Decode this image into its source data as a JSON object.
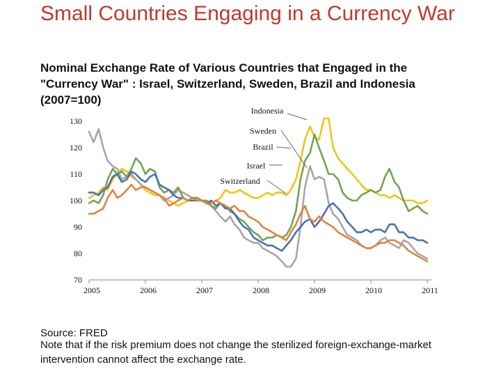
{
  "slide": {
    "title": "Small Countries Engaging in a Currency War",
    "source": "Source: FRED",
    "note": "Note that if the risk premium does not change the sterilized foreign-exchange-market intervention cannot affect the exchange rate."
  },
  "colors": {
    "title": "#c0392b",
    "Israel": "#4a72b0",
    "Switzerland": "#e0833d",
    "Sweden": "#a6a6a6",
    "Brazil": "#72a450",
    "Indonesia": "#f2c31a"
  },
  "chart_data": {
    "type": "line",
    "title": "Nominal Exchange Rate of Various Countries that Engaged in the \"Currency War\" : Israel, Switzerland, Sweden, Brazil and Indonesia (2007=100)",
    "xlabel": "",
    "ylabel": "",
    "xlim": [
      2005.0,
      2011.0
    ],
    "ylim": [
      70,
      130
    ],
    "yticks": [
      70,
      80,
      90,
      100,
      110,
      120,
      130
    ],
    "xticks": [
      2005,
      2006,
      2007,
      2008,
      2009,
      2010,
      2011
    ],
    "xtick_labels": [
      "2005",
      "2006",
      "2007",
      "2008",
      "2009",
      "2010",
      "2011"
    ],
    "grid": false,
    "legend": "callout labels",
    "series": [
      {
        "name": "Indonesia",
        "x": [
          2005.0,
          2005.08,
          2005.17,
          2005.25,
          2005.33,
          2005.42,
          2005.5,
          2005.58,
          2005.67,
          2005.75,
          2005.83,
          2005.92,
          2006.0,
          2006.08,
          2006.17,
          2006.25,
          2006.33,
          2006.42,
          2006.5,
          2006.58,
          2006.67,
          2006.75,
          2006.83,
          2006.92,
          2007.0,
          2007.08,
          2007.17,
          2007.25,
          2007.33,
          2007.42,
          2007.5,
          2007.58,
          2007.67,
          2007.75,
          2007.83,
          2007.92,
          2008.0,
          2008.08,
          2008.17,
          2008.25,
          2008.33,
          2008.42,
          2008.5,
          2008.58,
          2008.67,
          2008.75,
          2008.83,
          2008.92,
          2009.0,
          2009.08,
          2009.17,
          2009.25,
          2009.33,
          2009.42,
          2009.5,
          2009.58,
          2009.67,
          2009.75,
          2009.83,
          2009.92,
          2010.0,
          2010.08,
          2010.17,
          2010.25,
          2010.33,
          2010.42,
          2010.5,
          2010.58,
          2010.67,
          2010.75,
          2010.83,
          2010.92,
          2011.0
        ],
        "values": [
          101,
          102,
          103,
          105,
          104,
          108,
          110,
          112,
          111,
          109,
          108,
          106,
          104,
          103,
          102,
          102,
          101,
          100,
          99,
          98,
          99,
          100,
          101,
          101,
          100,
          100,
          99,
          100,
          101,
          104,
          103,
          103,
          104,
          103,
          102,
          101,
          101,
          102,
          103,
          102,
          103,
          103,
          102,
          104,
          108,
          115,
          123,
          128,
          124,
          123,
          131,
          131,
          120,
          116,
          114,
          112,
          110,
          108,
          106,
          104,
          104,
          103,
          102,
          102,
          101,
          102,
          101,
          100,
          100,
          100,
          99,
          99,
          100
        ]
      },
      {
        "name": "Sweden",
        "x": [
          2005.0,
          2005.08,
          2005.17,
          2005.25,
          2005.33,
          2005.42,
          2005.5,
          2005.58,
          2005.67,
          2005.75,
          2005.83,
          2005.92,
          2006.0,
          2006.08,
          2006.17,
          2006.25,
          2006.33,
          2006.42,
          2006.5,
          2006.58,
          2006.67,
          2006.75,
          2006.83,
          2006.92,
          2007.0,
          2007.08,
          2007.17,
          2007.25,
          2007.33,
          2007.42,
          2007.5,
          2007.58,
          2007.67,
          2007.75,
          2007.83,
          2007.92,
          2008.0,
          2008.08,
          2008.17,
          2008.25,
          2008.33,
          2008.42,
          2008.5,
          2008.58,
          2008.67,
          2008.75,
          2008.83,
          2008.92,
          2009.0,
          2009.08,
          2009.17,
          2009.25,
          2009.33,
          2009.42,
          2009.5,
          2009.58,
          2009.67,
          2009.75,
          2009.83,
          2009.92,
          2010.0,
          2010.08,
          2010.17,
          2010.25,
          2010.33,
          2010.42,
          2010.5,
          2010.58,
          2010.67,
          2010.75,
          2010.83,
          2010.92,
          2011.0
        ],
        "values": [
          126,
          122,
          127,
          120,
          115,
          113,
          112,
          108,
          109,
          110,
          108,
          106,
          105,
          104,
          103,
          102,
          100,
          101,
          102,
          104,
          103,
          102,
          101,
          101,
          100,
          99,
          98,
          96,
          94,
          92,
          94,
          91,
          89,
          86,
          85,
          84,
          84,
          82,
          81,
          80,
          79,
          77,
          75,
          75,
          78,
          90,
          105,
          113,
          108,
          109,
          108,
          99,
          95,
          93,
          90,
          87,
          86,
          85,
          83,
          82,
          82,
          83,
          85,
          86,
          84,
          83,
          82,
          85,
          84,
          82,
          80,
          79,
          78
        ]
      },
      {
        "name": "Brazil",
        "x": [
          2005.0,
          2005.08,
          2005.17,
          2005.25,
          2005.33,
          2005.42,
          2005.5,
          2005.58,
          2005.67,
          2005.75,
          2005.83,
          2005.92,
          2006.0,
          2006.08,
          2006.17,
          2006.25,
          2006.33,
          2006.42,
          2006.5,
          2006.58,
          2006.67,
          2006.75,
          2006.83,
          2006.92,
          2007.0,
          2007.08,
          2007.17,
          2007.25,
          2007.33,
          2007.42,
          2007.5,
          2007.58,
          2007.67,
          2007.75,
          2007.83,
          2007.92,
          2008.0,
          2008.08,
          2008.17,
          2008.25,
          2008.33,
          2008.42,
          2008.5,
          2008.58,
          2008.67,
          2008.75,
          2008.83,
          2008.92,
          2009.0,
          2009.08,
          2009.17,
          2009.25,
          2009.33,
          2009.42,
          2009.5,
          2009.58,
          2009.67,
          2009.75,
          2009.83,
          2009.92,
          2010.0,
          2010.08,
          2010.17,
          2010.25,
          2010.33,
          2010.42,
          2010.5,
          2010.58,
          2010.67,
          2010.75,
          2010.83,
          2010.92,
          2011.0
        ],
        "values": [
          99,
          100,
          99,
          102,
          108,
          112,
          110,
          111,
          109,
          112,
          116,
          114,
          110,
          112,
          111,
          105,
          103,
          104,
          103,
          105,
          101,
          100,
          101,
          101,
          100,
          100,
          98,
          97,
          99,
          98,
          96,
          95,
          93,
          92,
          90,
          88,
          87,
          85,
          86,
          86,
          87,
          86,
          87,
          90,
          96,
          108,
          115,
          118,
          125,
          120,
          115,
          110,
          110,
          108,
          103,
          101,
          100,
          100,
          102,
          103,
          104,
          103,
          104,
          109,
          112,
          107,
          105,
          100,
          96,
          97,
          98,
          96,
          95
        ]
      },
      {
        "name": "Israel",
        "x": [
          2005.0,
          2005.08,
          2005.17,
          2005.25,
          2005.33,
          2005.42,
          2005.5,
          2005.58,
          2005.67,
          2005.75,
          2005.83,
          2005.92,
          2006.0,
          2006.08,
          2006.17,
          2006.25,
          2006.33,
          2006.42,
          2006.5,
          2006.58,
          2006.67,
          2006.75,
          2006.83,
          2006.92,
          2007.0,
          2007.08,
          2007.17,
          2007.25,
          2007.33,
          2007.42,
          2007.5,
          2007.58,
          2007.67,
          2007.75,
          2007.83,
          2007.92,
          2008.0,
          2008.08,
          2008.17,
          2008.25,
          2008.33,
          2008.42,
          2008.5,
          2008.58,
          2008.67,
          2008.75,
          2008.83,
          2008.92,
          2009.0,
          2009.08,
          2009.17,
          2009.25,
          2009.33,
          2009.42,
          2009.5,
          2009.58,
          2009.67,
          2009.75,
          2009.83,
          2009.92,
          2010.0,
          2010.08,
          2010.17,
          2010.25,
          2010.33,
          2010.42,
          2010.5,
          2010.58,
          2010.67,
          2010.75,
          2010.83,
          2010.92,
          2011.0
        ],
        "values": [
          103,
          103,
          102,
          104,
          105,
          109,
          110,
          107,
          108,
          111,
          110,
          108,
          107,
          109,
          110,
          106,
          105,
          104,
          102,
          101,
          101,
          100,
          100,
          100,
          100,
          99,
          100,
          98,
          99,
          97,
          97,
          95,
          92,
          90,
          89,
          86,
          85,
          84,
          83,
          83,
          82,
          81,
          83,
          85,
          88,
          90,
          92,
          93,
          90,
          92,
          95,
          98,
          99,
          97,
          95,
          92,
          90,
          88,
          88,
          89,
          88,
          89,
          89,
          88,
          91,
          91,
          88,
          88,
          86,
          86,
          85,
          85,
          84
        ]
      },
      {
        "name": "Switzerland",
        "x": [
          2005.0,
          2005.08,
          2005.17,
          2005.25,
          2005.33,
          2005.42,
          2005.5,
          2005.58,
          2005.67,
          2005.75,
          2005.83,
          2005.92,
          2006.0,
          2006.08,
          2006.17,
          2006.25,
          2006.33,
          2006.42,
          2006.5,
          2006.58,
          2006.67,
          2006.75,
          2006.83,
          2006.92,
          2007.0,
          2007.08,
          2007.17,
          2007.25,
          2007.33,
          2007.42,
          2007.5,
          2007.58,
          2007.67,
          2007.75,
          2007.83,
          2007.92,
          2008.0,
          2008.08,
          2008.17,
          2008.25,
          2008.33,
          2008.42,
          2008.5,
          2008.58,
          2008.67,
          2008.75,
          2008.83,
          2008.92,
          2009.0,
          2009.08,
          2009.17,
          2009.25,
          2009.33,
          2009.42,
          2009.5,
          2009.58,
          2009.67,
          2009.75,
          2009.83,
          2009.92,
          2010.0,
          2010.08,
          2010.17,
          2010.25,
          2010.33,
          2010.42,
          2010.5,
          2010.58,
          2010.67,
          2010.75,
          2010.83,
          2010.92,
          2011.0
        ],
        "values": [
          95,
          95,
          96,
          97,
          101,
          104,
          101,
          102,
          104,
          106,
          104,
          105,
          105,
          104,
          103,
          102,
          101,
          98,
          99,
          100,
          101,
          100,
          101,
          100,
          100,
          99,
          99,
          100,
          99,
          98,
          97,
          98,
          96,
          96,
          94,
          93,
          92,
          90,
          89,
          88,
          87,
          86,
          85,
          88,
          91,
          95,
          98,
          93,
          92,
          94,
          92,
          91,
          90,
          88,
          87,
          86,
          85,
          84,
          83,
          82,
          82,
          83,
          84,
          84,
          85,
          85,
          84,
          83,
          81,
          80,
          79,
          78,
          77
        ]
      }
    ],
    "annotations": [
      "Indonesia",
      "Sweden",
      "Brazil",
      "Israel",
      "Switzerland"
    ]
  }
}
